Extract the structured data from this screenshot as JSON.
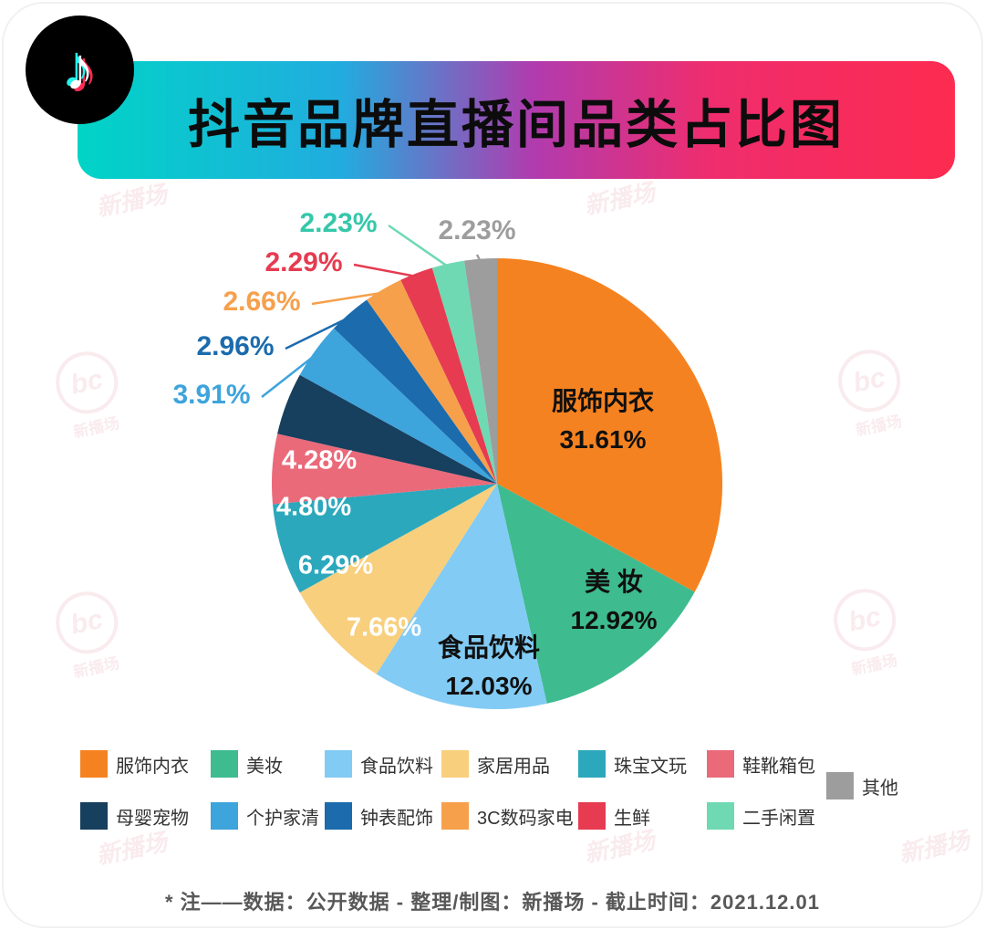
{
  "header": {
    "title": "抖音品牌直播间品类占比图"
  },
  "icons": {
    "note_glyph": "♪",
    "logo": "tiktok-music-note"
  },
  "footer": {
    "note": "* 注——数据：公开数据 - 整理/制图：新播场 - 截止时间：2021.12.01"
  },
  "watermark": {
    "text": "新播场",
    "logo_text": "bc"
  },
  "colors": {
    "banner_gradient": [
      "#00D4C6",
      "#21ACDF",
      "#B13BAE",
      "#EF2D6E",
      "#FD2B4F"
    ],
    "tiktok_cyan": "#25F4EE",
    "tiktok_pink": "#FE2C55",
    "background": "#FFFFFF"
  },
  "chart_data": {
    "type": "pie",
    "title": "抖音品牌直播间品类占比图",
    "unit": "%",
    "legend_position": "bottom",
    "start_angle": "top",
    "direction": "clockwise",
    "slices": [
      {
        "label": "服饰内衣",
        "value": 31.61,
        "display": "31.61%",
        "color": "#F58220"
      },
      {
        "label": "美妆",
        "chart_label": "美 妆",
        "value": 12.92,
        "display": "12.92%",
        "color": "#3EBB8F"
      },
      {
        "label": "食品饮料",
        "value": 12.03,
        "display": "12.03%",
        "color": "#82CBF4"
      },
      {
        "label": "家居用品",
        "value": 7.66,
        "display": "7.66%",
        "color": "#F8CF7D"
      },
      {
        "label": "珠宝文玩",
        "value": 6.29,
        "display": "6.29%",
        "color": "#2CA8BC"
      },
      {
        "label": "鞋靴箱包",
        "value": 4.8,
        "display": "4.80%",
        "color": "#EA6A7A"
      },
      {
        "label": "母婴宠物",
        "value": 4.28,
        "display": "4.28%",
        "color": "#173F5E"
      },
      {
        "label": "个护家清",
        "value": 3.91,
        "display": "3.91%",
        "color": "#3EA4DC"
      },
      {
        "label": "钟表配饰",
        "value": 2.96,
        "display": "2.96%",
        "color": "#1B6BAD"
      },
      {
        "label": "3C数码家电",
        "value": 2.66,
        "display": "2.66%",
        "color": "#F6A04C"
      },
      {
        "label": "生鲜",
        "value": 2.29,
        "display": "2.29%",
        "color": "#E63B50"
      },
      {
        "label": "二手闲置",
        "value": 2.23,
        "display": "2.23%",
        "color": "#6FD9B4",
        "label_color": "#35C7A9"
      },
      {
        "label": "其他",
        "value": 2.23,
        "display": "2.23%",
        "color": "#9D9D9D"
      }
    ],
    "legend": {
      "row1": [
        "服饰内衣",
        "美妆",
        "食品饮料",
        "家居用品",
        "珠宝文玩",
        "鞋靴箱包"
      ],
      "row2": [
        "母婴宠物",
        "个护家清",
        "钟表配饰",
        "3C数码家电",
        "生鲜",
        "二手闲置"
      ],
      "side": "其他"
    }
  }
}
